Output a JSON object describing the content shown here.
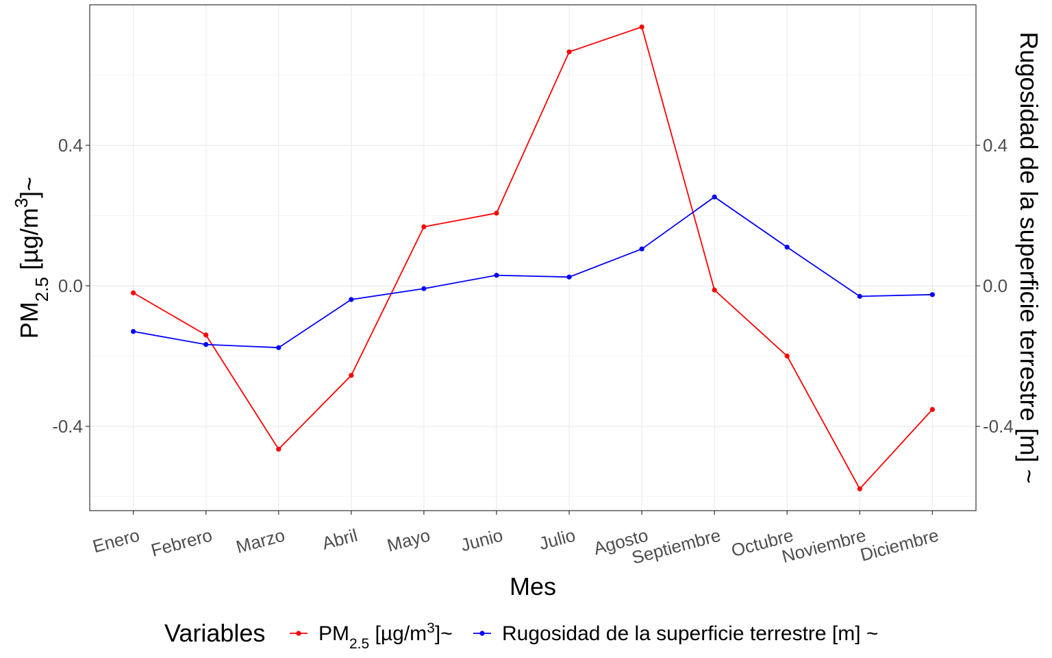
{
  "chart_data": {
    "type": "line",
    "categories": [
      "Enero",
      "Febrero",
      "Marzo",
      "Abril",
      "Mayo",
      "Junio",
      "Julio",
      "Agosto",
      "Septiembre",
      "Octubre",
      "Noviembre",
      "Diciembre"
    ],
    "series": [
      {
        "name": "PM2.5 [µg/m3]~",
        "name_parts": {
          "base": "PM",
          "sub": "2.5",
          "mid": " [µg/m",
          "sup": "3",
          "tail": "]~"
        },
        "color": "#FF0000",
        "values": [
          -0.02,
          -0.14,
          -0.465,
          -0.255,
          0.168,
          0.207,
          0.666,
          0.737,
          -0.012,
          -0.2,
          -0.578,
          -0.352
        ]
      },
      {
        "name": "Rugosidad de la superficie terrestre [m] ~",
        "color": "#0000FF",
        "values": [
          -0.13,
          -0.167,
          -0.176,
          -0.039,
          -0.008,
          0.03,
          0.025,
          0.105,
          0.253,
          0.11,
          -0.03,
          -0.025
        ]
      }
    ],
    "xlabel": "Mes",
    "ylabel": "PM2.5 [µg/m3]~",
    "ylabel_parts": {
      "base": "PM",
      "sub": "2.5",
      "mid": " [µg/m",
      "sup": "3",
      "tail": "]~"
    },
    "y2label": "Rugosidad de la superficie terrestre [m] ~",
    "ylim": [
      -0.64,
      0.8
    ],
    "yticks": [
      -0.4,
      0.0,
      0.4
    ],
    "ytick_labels": [
      "-0.4",
      "0.0",
      "0.4"
    ],
    "y2tick_labels": [
      "-0.4",
      "0.0",
      "0.4"
    ],
    "grid": true,
    "legend": {
      "title": "Variables",
      "position": "bottom"
    }
  }
}
